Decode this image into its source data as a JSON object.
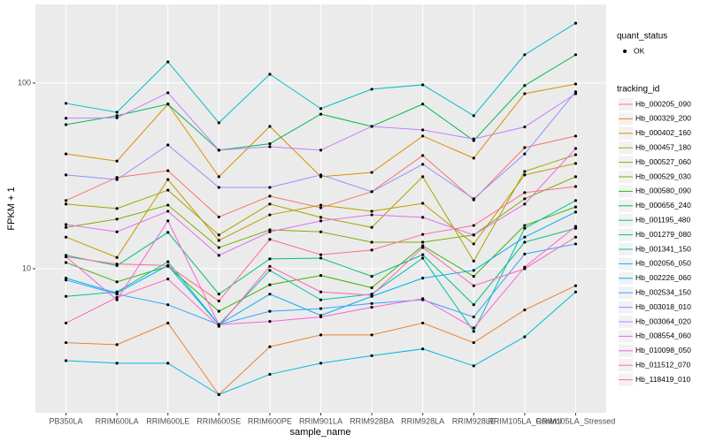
{
  "chart_data": {
    "type": "line",
    "log_y": true,
    "grid": true,
    "x_label": "sample_name",
    "y_label": "FPKM + 1",
    "categories": [
      "PB350LA",
      "RRIM600LA",
      "RRIM600LE",
      "RRIM600SE",
      "RRIM600PE",
      "RRIM901LA",
      "RRIM928BA",
      "RRIM928LA",
      "RRIM928LE",
      "RRIM105LA_Control",
      "RRIM105LA_Stressed"
    ],
    "ylim": [
      1.675,
      265
    ],
    "yticks": [
      10,
      100
    ],
    "point_legend_title": "quant_status",
    "point_legend_label": "OK",
    "legend_title": "tracking_id",
    "series": [
      {
        "name": "Hb_000205_090",
        "color": "#F8766D",
        "values": [
          23.3,
          31,
          33.7,
          19,
          24.6,
          21.3,
          26,
          40.7,
          23.5,
          44.9,
          51.8
        ]
      },
      {
        "name": "Hb_000329_200",
        "color": "#EA8331",
        "values": [
          4.0,
          3.9,
          5.1,
          2.1,
          3.8,
          4.4,
          4.4,
          5.1,
          4.0,
          6.0,
          8.1
        ]
      },
      {
        "name": "Hb_000402_160",
        "color": "#D89000",
        "values": [
          41.5,
          38,
          77,
          31.3,
          58.4,
          31.3,
          33,
          51.8,
          39.4,
          87.6,
          98.8
        ]
      },
      {
        "name": "Hb_000457_180",
        "color": "#C09B00",
        "values": [
          14.8,
          11.5,
          30.2,
          14.2,
          19.5,
          22,
          20.4,
          22.5,
          13.6,
          32,
          36.9
        ]
      },
      {
        "name": "Hb_000527_060",
        "color": "#A3A500",
        "values": [
          22.3,
          21.1,
          26.5,
          15.2,
          22.3,
          18.9,
          16.7,
          31.3,
          11,
          33.4,
          41.1
        ]
      },
      {
        "name": "Hb_000529_030",
        "color": "#7CAE00",
        "values": [
          16.7,
          18.5,
          22,
          13,
          16.2,
          15.8,
          13.9,
          13.9,
          15.2,
          23.8,
          31.3
        ]
      },
      {
        "name": "Hb_000580_090",
        "color": "#39B600",
        "values": [
          10.8,
          8.5,
          10.3,
          5.9,
          8.2,
          9.2,
          7.9,
          13.3,
          9.1,
          17.1,
          21.5
        ]
      },
      {
        "name": "Hb_000656_240",
        "color": "#00BB4E",
        "values": [
          59.7,
          66.7,
          77,
          43.5,
          47.1,
          68,
          58.4,
          77,
          49,
          96.9,
          142
        ]
      },
      {
        "name": "Hb_001195_480",
        "color": "#00BF7D",
        "values": [
          11.8,
          10.4,
          15.7,
          7.3,
          11.3,
          11.4,
          9.1,
          11.9,
          6.4,
          13.9,
          16.5
        ]
      },
      {
        "name": "Hb_001279_080",
        "color": "#00C1A3",
        "values": [
          7.1,
          7.5,
          10.9,
          5,
          9.8,
          6.8,
          7.3,
          11.4,
          4.6,
          16.5,
          23.3
        ]
      },
      {
        "name": "Hb_001341_150",
        "color": "#00BFC4",
        "values": [
          77.7,
          69.6,
          130,
          61.1,
          111.5,
          72.8,
          92.6,
          97.8,
          66.7,
          142,
          210
        ]
      },
      {
        "name": "Hb_002056_050",
        "color": "#00BAE0",
        "values": [
          3.2,
          3.1,
          3.1,
          2.1,
          2.7,
          3.1,
          3.4,
          3.7,
          3.0,
          4.3,
          7.5
        ]
      },
      {
        "name": "Hb_002226_060",
        "color": "#00B0F6",
        "values": [
          8.9,
          7.4,
          10.4,
          5,
          7.3,
          5.6,
          7.1,
          8.9,
          9.8,
          14.8,
          20.2
        ]
      },
      {
        "name": "Hb_002534_150",
        "color": "#35A2FF",
        "values": [
          8.7,
          7.3,
          6.4,
          5,
          5.9,
          6.1,
          6.5,
          6.8,
          5.5,
          12,
          13.6
        ]
      },
      {
        "name": "Hb_003018_010",
        "color": "#9590FF",
        "values": [
          32,
          30.2,
          46.4,
          27.4,
          27.4,
          32,
          26,
          36.5,
          23.8,
          41.5,
          89.7
        ]
      },
      {
        "name": "Hb_003064_020",
        "color": "#C77CFF",
        "values": [
          64.6,
          65,
          88.6,
          43.5,
          45.4,
          43.5,
          58.4,
          55.9,
          50,
          58,
          87.6
        ]
      },
      {
        "name": "Hb_008554_060",
        "color": "#E76BF3",
        "values": [
          17.3,
          15.8,
          20.4,
          11.8,
          15.8,
          18.1,
          19.5,
          18.9,
          15.2,
          22.3,
          44.4
        ]
      },
      {
        "name": "Hb_010098_050",
        "color": "#FA62DB",
        "values": [
          11.6,
          6.8,
          18.1,
          5,
          5.2,
          5.5,
          6.2,
          6.9,
          4.8,
          10.2,
          16.9
        ]
      },
      {
        "name": "Hb_011512_070",
        "color": "#FF62BC",
        "values": [
          5.1,
          7,
          8.8,
          4.9,
          10.3,
          7.5,
          7.2,
          13,
          8.1,
          10,
          14.8
        ]
      },
      {
        "name": "Hb_118419_010",
        "color": "#FF6C91",
        "values": [
          11.6,
          10.6,
          10.4,
          6.7,
          14.4,
          11.9,
          12.6,
          15.3,
          17.1,
          25.7,
          27.7
        ]
      }
    ]
  }
}
